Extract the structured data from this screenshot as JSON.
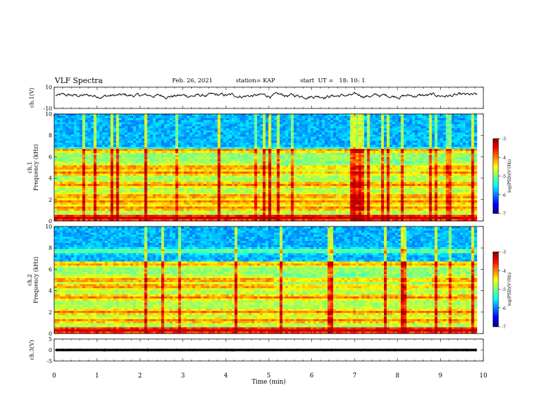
{
  "header": {
    "title": "VLF Spectra",
    "date": "Feb. 26, 2021",
    "station": "station= KAP",
    "start": "start  UT =   18: 10: 1"
  },
  "chart_data": [
    {
      "type": "line",
      "name": "ch1-waveform",
      "ylabel": "ch.1(V)",
      "ylim": [
        -10,
        10
      ],
      "yticks": [
        "10",
        "-10"
      ],
      "xlim": [
        0,
        10
      ],
      "approx_mean": 2,
      "approx_amplitude": 3
    },
    {
      "type": "heatmap",
      "name": "ch1-spectrogram",
      "ylabel_line1": "ch.1",
      "ylabel_line2": "Frequency (kHz)",
      "ylim": [
        0,
        10
      ],
      "yticks": [
        "0",
        "2",
        "4",
        "6",
        "8",
        "10"
      ],
      "xlim": [
        0,
        10
      ],
      "data_end_min": 9.85,
      "bands_khz": [
        0.3,
        1.2,
        1.8,
        2.3,
        3.4,
        4.5,
        5.0,
        6.6
      ],
      "colorbar": {
        "label": "log(PSD)(V²/Hz)",
        "range": [
          -7,
          -3
        ],
        "ticks": [
          "-3",
          "-4",
          "-5",
          "-6",
          "-7"
        ]
      }
    },
    {
      "type": "heatmap",
      "name": "ch2-spectrogram",
      "ylabel_line1": "ch.2",
      "ylabel_line2": "Frequency (kHz)",
      "ylim": [
        0,
        10
      ],
      "yticks": [
        "0",
        "2",
        "4",
        "6",
        "8",
        "10"
      ],
      "xlim": [
        0,
        10
      ],
      "data_end_min": 9.85,
      "bands_khz": [
        0.3,
        1.2,
        2.0,
        3.4,
        4.4,
        5.0,
        6.5,
        7.7
      ],
      "colorbar": {
        "label": "log(PSD)(V²/Hz)",
        "range": [
          -7,
          -3
        ],
        "ticks": [
          "-3",
          "-4",
          "-5",
          "-6",
          "-7"
        ]
      }
    },
    {
      "type": "line",
      "name": "ch3-waveform",
      "ylabel": "ch.3(V)",
      "ylim": [
        -5,
        5
      ],
      "yticks": [
        "5",
        "0",
        "-5"
      ],
      "xlim": [
        0,
        10
      ],
      "approx_mean": 0,
      "approx_amplitude": 0.6
    }
  ],
  "xaxis": {
    "label": "Time (min)",
    "ticks": [
      "0",
      "1",
      "2",
      "3",
      "4",
      "5",
      "6",
      "7",
      "8",
      "9",
      "10"
    ]
  }
}
